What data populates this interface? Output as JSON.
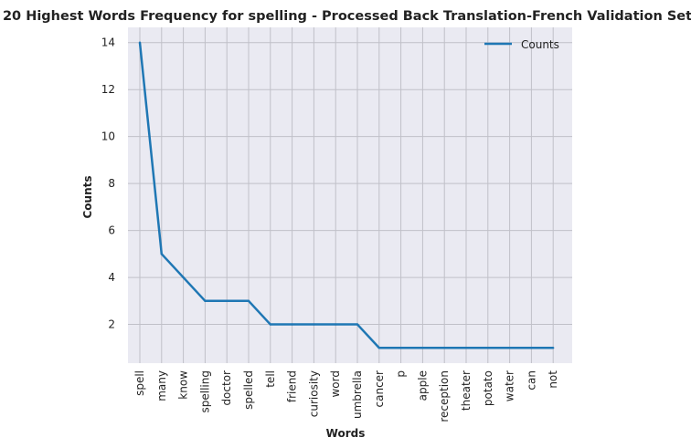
{
  "chart_data": {
    "type": "line",
    "title": "20 Highest Words Frequency for spelling - Processed Back Translation-French Validation Set",
    "xlabel": "Words",
    "ylabel": "Counts",
    "categories": [
      "spell",
      "many",
      "know",
      "spelling",
      "doctor",
      "spelled",
      "tell",
      "friend",
      "curiosity",
      "word",
      "umbrella",
      "cancer",
      "p",
      "apple",
      "reception",
      "theater",
      "potato",
      "water",
      "can",
      "not"
    ],
    "series": [
      {
        "name": "Counts",
        "values": [
          14,
          5,
          4,
          3,
          3,
          3,
          2,
          2,
          2,
          2,
          2,
          1,
          1,
          1,
          1,
          1,
          1,
          1,
          1,
          1
        ],
        "color": "#1f77b4"
      }
    ],
    "yticks": [
      2,
      4,
      6,
      8,
      10,
      12,
      14
    ],
    "ylim": [
      0.35,
      14.65
    ],
    "grid": true,
    "legend_position": "top-right",
    "background_color": "#eaeaf2",
    "grid_color": "#c0c0c8"
  }
}
